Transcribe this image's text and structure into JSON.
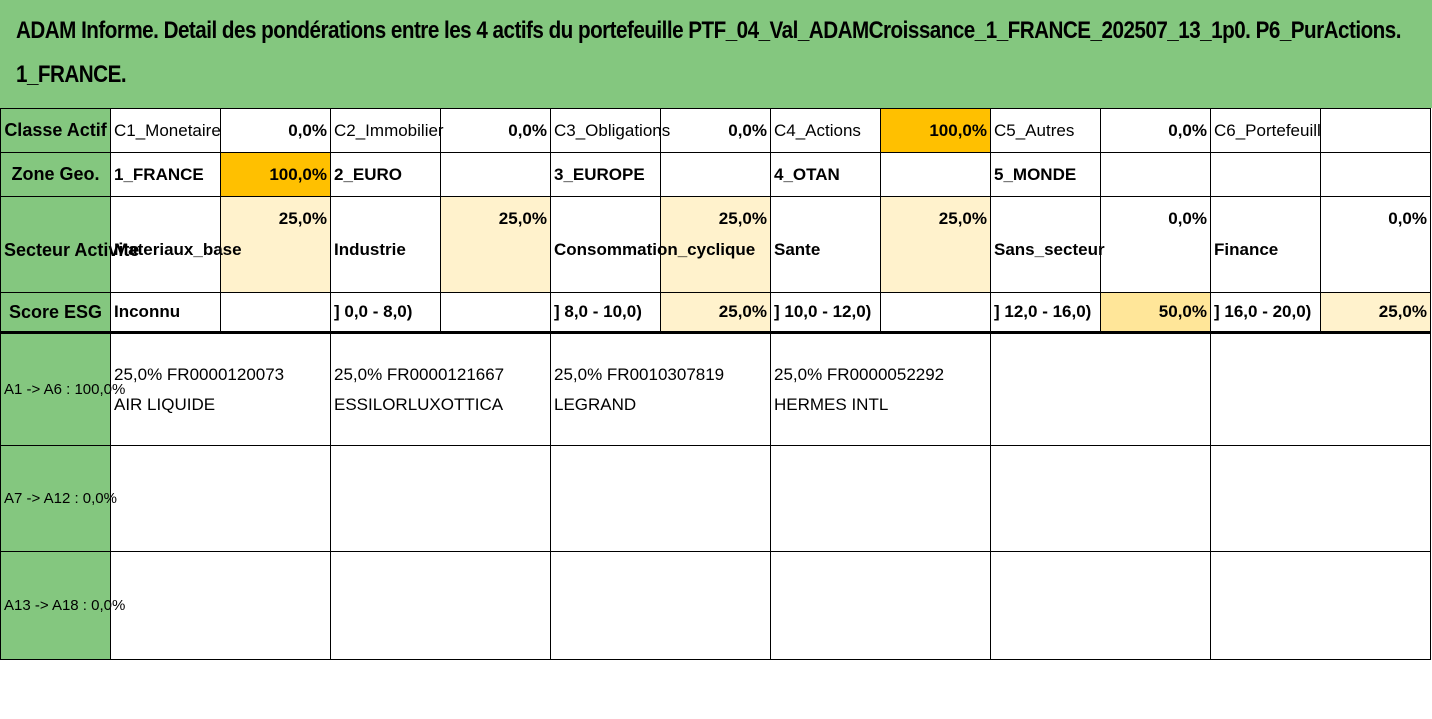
{
  "title": {
    "line1": "ADAM Informe. Detail des pondérations entre les 4 actifs du portefeuille PTF_04_Val_ADAMCroissance_1_FRANCE_202507_13_1p0. P6_PurActions.",
    "line2": "1_FRANCE."
  },
  "classe": {
    "label": "Classe Actif",
    "items": [
      {
        "name": "C1_Monetaire",
        "value": "0,0%"
      },
      {
        "name": "C2_Immobilier",
        "value": "0,0%"
      },
      {
        "name": "C3_Obligations",
        "value": "0,0%"
      },
      {
        "name": "C4_Actions",
        "value": "100,0%"
      },
      {
        "name": "C5_Autres",
        "value": "0,0%"
      },
      {
        "name": "C6_Portefeuill",
        "value": ""
      }
    ]
  },
  "zone": {
    "label": "Zone Geo.",
    "items": [
      {
        "name": "1_FRANCE",
        "value": "100,0%"
      },
      {
        "name": "2_EURO",
        "value": ""
      },
      {
        "name": "3_EUROPE",
        "value": ""
      },
      {
        "name": "4_OTAN",
        "value": ""
      },
      {
        "name": "5_MONDE",
        "value": ""
      },
      {
        "name": "",
        "value": ""
      }
    ]
  },
  "secteur": {
    "label": "Secteur Activite",
    "items": [
      {
        "name": "Materiaux_base",
        "value": "25,0%"
      },
      {
        "name": "Industrie",
        "value": "25,0%"
      },
      {
        "name": "Consommation_cyclique",
        "value": "25,0%"
      },
      {
        "name": "Sante",
        "value": "25,0%"
      },
      {
        "name": "Sans_secteur",
        "value": "0,0%"
      },
      {
        "name": "Finance",
        "value": "0,0%"
      }
    ]
  },
  "esg": {
    "label": "Score ESG",
    "items": [
      {
        "name": "Inconnu",
        "value": ""
      },
      {
        "name": "] 0,0 - 8,0)",
        "value": ""
      },
      {
        "name": "] 8,0 - 10,0)",
        "value": "25,0%"
      },
      {
        "name": "] 10,0 - 12,0)",
        "value": ""
      },
      {
        "name": "] 12,0 - 16,0)",
        "value": "50,0%"
      },
      {
        "name": "] 16,0 - 20,0)",
        "value": "25,0%"
      }
    ]
  },
  "assets": {
    "group1_label": "A1 -> A6 : 100,0%",
    "group2_label": "A7 -> A12 : 0,0%",
    "group3_label": "A13 -> A18 : 0,0%",
    "group1": [
      {
        "line1": "25,0% FR0000120073",
        "line2": "AIR LIQUIDE"
      },
      {
        "line1": "25,0% FR0000121667",
        "line2": "ESSILORLUXOTTICA"
      },
      {
        "line1": "25,0% FR0010307819",
        "line2": "LEGRAND"
      },
      {
        "line1": "25,0% FR0000052292",
        "line2": "HERMES INTL"
      }
    ]
  },
  "colors": {
    "header_green": "#84C77F",
    "highlight_orange": "#FFC000",
    "light_yellow": "#FFF2CC",
    "mid_yellow": "#FFE699"
  }
}
